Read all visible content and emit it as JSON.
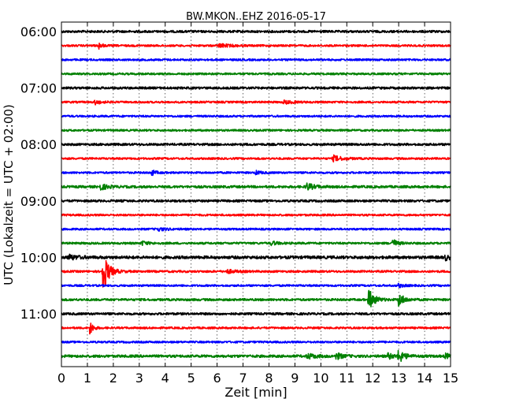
{
  "chart_data": {
    "type": "line",
    "title": "BW.MKON..EHZ 2016-05-17",
    "xlabel": "Zeit  [min]",
    "ylabel": "UTC (Lokalzeit = UTC + 02:00)",
    "xlim": [
      0,
      15
    ],
    "x_ticks": [
      "0",
      "1",
      "2",
      "3",
      "4",
      "5",
      "6",
      "7",
      "8",
      "9",
      "10",
      "11",
      "12",
      "13",
      "14",
      "15"
    ],
    "y_tick_labels": [
      "06:00",
      "07:00",
      "08:00",
      "09:00",
      "10:00",
      "11:00"
    ],
    "vertical_grid": true,
    "trace_colors": [
      "#000000",
      "#ff0000",
      "#0000ff",
      "#008000"
    ],
    "series": [
      {
        "start": "06:00",
        "noise": 1.4,
        "events": []
      },
      {
        "start": "06:15",
        "noise": 1.2,
        "events": [
          [
            1.45,
            4,
            0.12
          ],
          [
            6.1,
            2,
            0.4
          ]
        ]
      },
      {
        "start": "06:30",
        "noise": 1.2,
        "events": []
      },
      {
        "start": "06:45",
        "noise": 1.2,
        "events": []
      },
      {
        "start": "07:00",
        "noise": 1.4,
        "events": []
      },
      {
        "start": "07:15",
        "noise": 1.2,
        "events": [
          [
            1.3,
            2.5,
            0.2
          ],
          [
            8.6,
            2,
            0.3
          ]
        ]
      },
      {
        "start": "07:30",
        "noise": 1.2,
        "events": []
      },
      {
        "start": "07:45",
        "noise": 1.2,
        "events": []
      },
      {
        "start": "08:00",
        "noise": 1.4,
        "events": []
      },
      {
        "start": "08:15",
        "noise": 1.2,
        "events": [
          [
            10.5,
            3.5,
            0.3
          ]
        ]
      },
      {
        "start": "08:30",
        "noise": 1.2,
        "events": [
          [
            3.45,
            4,
            0.15
          ],
          [
            7.5,
            2,
            0.2
          ]
        ]
      },
      {
        "start": "08:45",
        "noise": 1.5,
        "events": [
          [
            1.5,
            3.5,
            0.25
          ],
          [
            9.45,
            4.5,
            0.25
          ]
        ]
      },
      {
        "start": "09:00",
        "noise": 1.4,
        "events": []
      },
      {
        "start": "09:15",
        "noise": 1.2,
        "events": []
      },
      {
        "start": "09:30",
        "noise": 1.2,
        "events": [
          [
            3.7,
            2,
            0.3
          ]
        ]
      },
      {
        "start": "09:45",
        "noise": 1.3,
        "events": [
          [
            3.1,
            2.5,
            0.2
          ],
          [
            8.1,
            2.5,
            0.2
          ],
          [
            12.75,
            6,
            0.15
          ]
        ]
      },
      {
        "start": "10:00",
        "noise": 1.8,
        "events": [
          [
            0.3,
            3,
            0.3
          ],
          [
            14.8,
            3,
            0.2
          ]
        ]
      },
      {
        "start": "10:15",
        "noise": 1.3,
        "events": [
          [
            1.6,
            26,
            0.2
          ],
          [
            6.4,
            2,
            0.3
          ]
        ]
      },
      {
        "start": "10:30",
        "noise": 1.2,
        "events": [
          [
            13.0,
            2,
            0.2
          ]
        ]
      },
      {
        "start": "10:45",
        "noise": 1.4,
        "events": [
          [
            11.85,
            13,
            0.2
          ],
          [
            13.0,
            9,
            0.18
          ]
        ]
      },
      {
        "start": "11:00",
        "noise": 1.4,
        "events": []
      },
      {
        "start": "11:15",
        "noise": 1.2,
        "events": [
          [
            1.1,
            10,
            0.1
          ]
        ]
      },
      {
        "start": "11:30",
        "noise": 1.2,
        "events": []
      },
      {
        "start": "11:45",
        "noise": 1.6,
        "events": [
          [
            9.5,
            3,
            0.3
          ],
          [
            10.6,
            4,
            0.2
          ],
          [
            12.6,
            3.5,
            0.2
          ],
          [
            13.0,
            8,
            0.2
          ],
          [
            14.8,
            3,
            0.2
          ]
        ]
      }
    ]
  }
}
